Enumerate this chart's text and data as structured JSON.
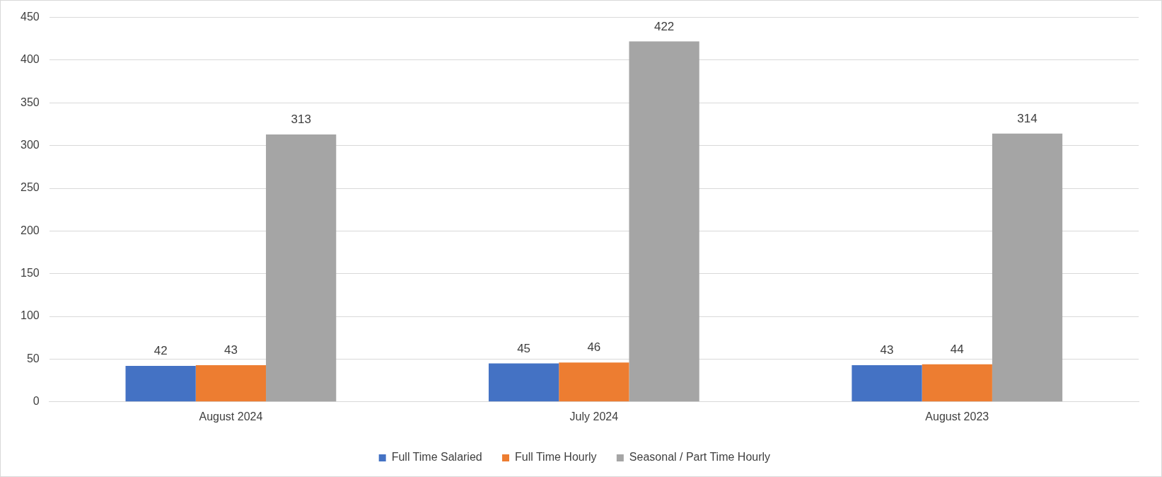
{
  "chart_data": {
    "type": "bar",
    "categories": [
      "August 2024",
      "July 2024",
      "August 2023"
    ],
    "series": [
      {
        "name": "Full Time Salaried",
        "color": "#4472c4",
        "values": [
          42,
          45,
          43
        ]
      },
      {
        "name": "Full Time Hourly",
        "color": "#ed7d31",
        "values": [
          43,
          46,
          44
        ]
      },
      {
        "name": "Seasonal / Part Time Hourly",
        "color": "#a5a5a5",
        "values": [
          313,
          422,
          314
        ]
      }
    ],
    "ylim": [
      0,
      450
    ],
    "yticks": [
      0,
      50,
      100,
      150,
      200,
      250,
      300,
      350,
      400,
      450
    ],
    "grid": "y",
    "legend": "bottom",
    "data_labels": true
  }
}
